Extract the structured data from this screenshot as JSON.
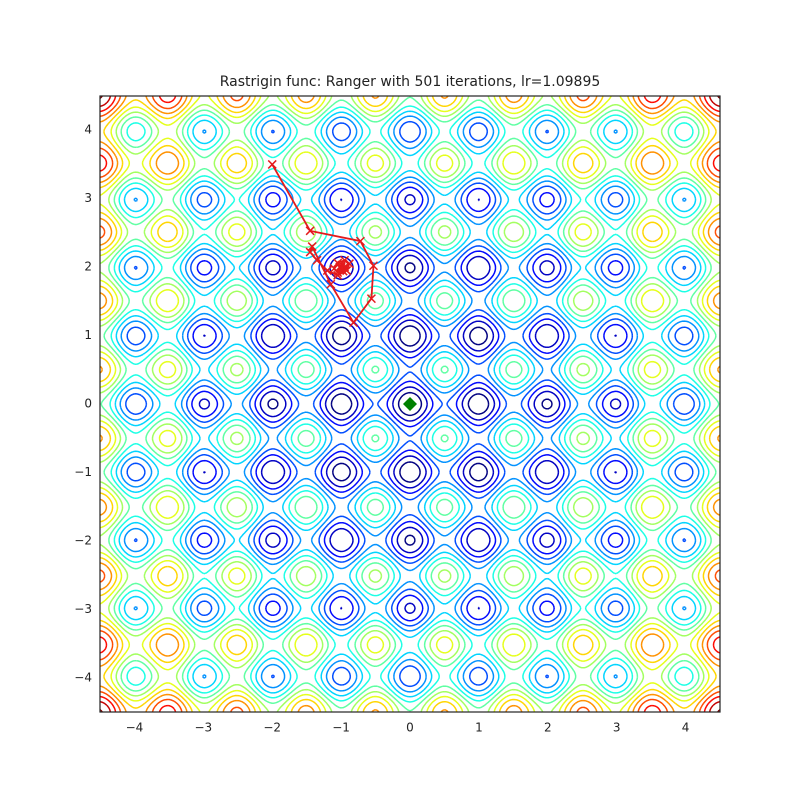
{
  "chart_data": {
    "type": "contour",
    "title": "Rastrigin func: Ranger with 501 iterations, lr=1.09895",
    "cmap": "jet",
    "levels": [
      5,
      10,
      15,
      20,
      25,
      30,
      35,
      40,
      45,
      50,
      55,
      60,
      65,
      70,
      75,
      80
    ],
    "xlim": [
      -4.5,
      4.5
    ],
    "ylim": [
      -4.5,
      4.5
    ],
    "xticks": [
      {
        "value": -4,
        "label": "−4"
      },
      {
        "value": -3,
        "label": "−3"
      },
      {
        "value": -2,
        "label": "−2"
      },
      {
        "value": -1,
        "label": "−1"
      },
      0,
      1,
      2,
      3,
      4
    ],
    "yticks": [
      {
        "value": -4,
        "label": "−4"
      },
      {
        "value": -3,
        "label": "−3"
      },
      {
        "value": -2,
        "label": "−2"
      },
      {
        "value": -1,
        "label": "−1"
      },
      0,
      1,
      2,
      3,
      4
    ],
    "path": {
      "color": "#e41a1c",
      "x": [
        -2,
        -1.45,
        -0.72,
        -0.53,
        -0.56,
        -0.82,
        -1.15,
        -1.42,
        -1.45,
        -1.35,
        -1.2,
        -1.05,
        -0.92,
        -0.88,
        -0.95,
        -1.05,
        -1.1,
        -1.05,
        -0.97,
        -0.95,
        -0.99,
        -1.02,
        -1.0,
        -1.0
      ],
      "y": [
        3.5,
        2.53,
        2.38,
        2.02,
        1.54,
        1.19,
        1.75,
        2.3,
        2.22,
        2.1,
        1.95,
        1.88,
        1.95,
        2.05,
        2.1,
        2.06,
        1.98,
        1.92,
        1.94,
        2.0,
        2.03,
        2.0,
        1.98,
        2.0
      ]
    },
    "minimum": {
      "x": 0,
      "y": 0,
      "color": "green"
    }
  }
}
